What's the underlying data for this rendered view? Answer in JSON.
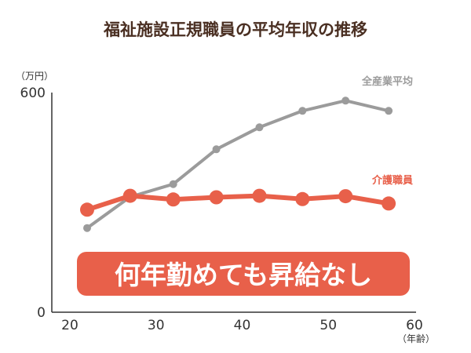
{
  "title": "福祉施設正規職員の平均年収の推移",
  "colors": {
    "title": "#4a2f22",
    "axis": "#333333",
    "all_industry": "#9b9b9b",
    "care_worker": "#e8604a",
    "banner_bg": "#e8604a",
    "banner_text": "#ffffff"
  },
  "banner_text": "何年勤めても昇給なし",
  "chart_data": {
    "type": "line",
    "title": "福祉施設正規職員の平均年収の推移",
    "xlabel": "（年齢）",
    "ylabel": "（万円）",
    "xlim": [
      20,
      60
    ],
    "ylim": [
      0,
      600
    ],
    "x_ticks": [
      20,
      30,
      40,
      50,
      60
    ],
    "y_ticks": [
      0,
      600
    ],
    "grid": false,
    "series": [
      {
        "name": "全産業平均",
        "color": "#9b9b9b",
        "x": [
          22,
          27,
          32,
          37,
          42,
          47,
          52,
          57
        ],
        "y": [
          230,
          315,
          350,
          445,
          505,
          550,
          578,
          550
        ]
      },
      {
        "name": "介護職員",
        "color": "#e8604a",
        "x": [
          22,
          27,
          32,
          37,
          42,
          47,
          52,
          57
        ],
        "y": [
          280,
          318,
          308,
          314,
          318,
          309,
          317,
          297
        ]
      }
    ]
  }
}
